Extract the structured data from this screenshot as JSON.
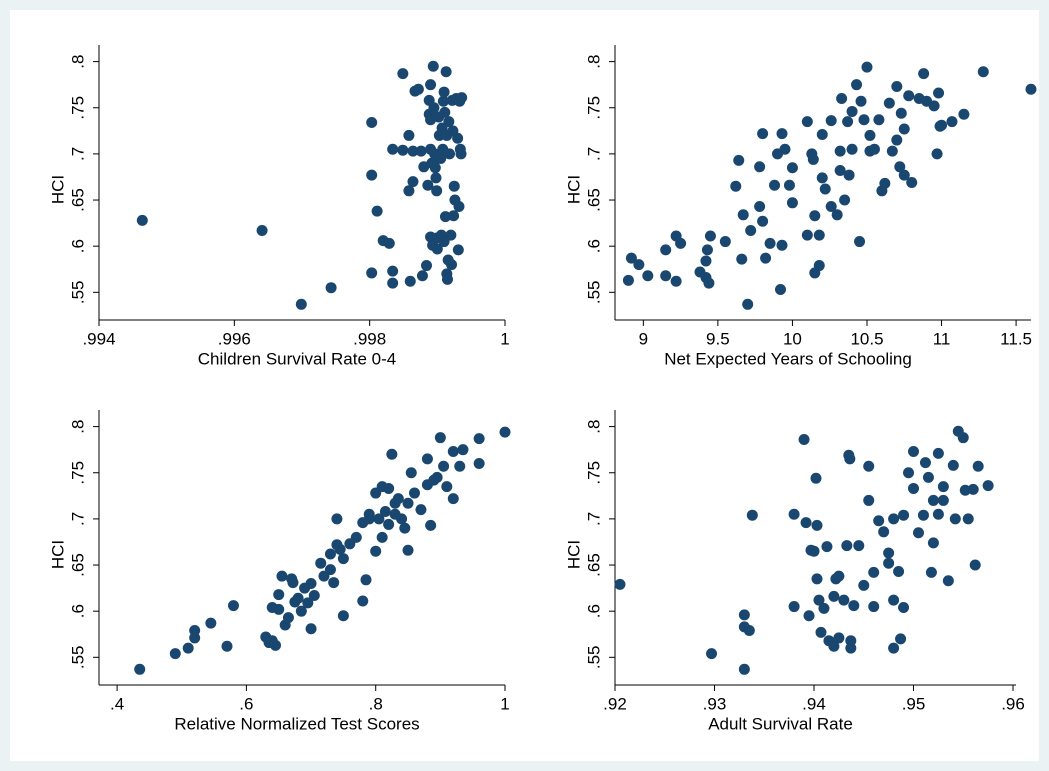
{
  "chart_data": [
    {
      "type": "scatter",
      "x_label": "Children Survival Rate 0-4",
      "y_label": "HCI",
      "color": "#1a476f",
      "xlim": [
        0.994,
        1.0
      ],
      "ylim": [
        0.52,
        0.818
      ],
      "xticks": [
        {
          "value": 0.994,
          "label": ".994"
        },
        {
          "value": 0.996,
          "label": ".996"
        },
        {
          "value": 0.998,
          "label": ".998"
        },
        1
      ],
      "yticks": [
        {
          "value": 0.55,
          "label": ".55"
        },
        {
          "value": 0.6,
          "label": ".6"
        },
        {
          "value": 0.65,
          "label": ".65"
        },
        {
          "value": 0.7,
          "label": ".7"
        },
        {
          "value": 0.75,
          "label": ".75"
        },
        {
          "value": 0.8,
          "label": ".8"
        }
      ],
      "x": [
        0.99464,
        0.99641,
        0.99699,
        0.99743,
        0.99803,
        0.99803,
        0.99803,
        0.99811,
        0.9982,
        0.99829,
        0.99834,
        0.99834,
        0.99834,
        0.99849,
        0.99849,
        0.99858,
        0.99858,
        0.99864,
        0.99864,
        0.9986,
        0.99867,
        0.99872,
        0.99876,
        0.9988,
        0.99878,
        0.99884,
        0.99886,
        0.99888,
        0.99888,
        0.9989,
        0.9989,
        0.9989,
        0.9989,
        0.99892,
        0.99893,
        0.99894,
        0.99895,
        0.99896,
        0.99897,
        0.99898,
        0.99899,
        0.999,
        0.999,
        0.99902,
        0.99903,
        0.99905,
        0.99906,
        0.99907,
        0.99908,
        0.99909,
        0.9991,
        0.9991,
        0.99911,
        0.99912,
        0.99913,
        0.99914,
        0.99914,
        0.99915,
        0.99916,
        0.99917,
        0.99918,
        0.9992,
        0.99921,
        0.99922,
        0.99923,
        0.99924,
        0.99925,
        0.99926,
        0.99928,
        0.9993,
        0.99931,
        0.99932,
        0.99933,
        0.99934,
        0.99935,
        0.99936
      ],
      "y": [
        0.628,
        0.617,
        0.537,
        0.555,
        0.734,
        0.677,
        0.571,
        0.638,
        0.606,
        0.603,
        0.705,
        0.573,
        0.56,
        0.787,
        0.704,
        0.72,
        0.66,
        0.703,
        0.67,
        0.562,
        0.768,
        0.77,
        0.703,
        0.686,
        0.568,
        0.579,
        0.666,
        0.758,
        0.743,
        0.775,
        0.737,
        0.705,
        0.61,
        0.69,
        0.601,
        0.795,
        0.75,
        0.7,
        0.685,
        0.674,
        0.66,
        0.609,
        0.597,
        0.74,
        0.72,
        0.695,
        0.612,
        0.728,
        0.705,
        0.757,
        0.767,
        0.605,
        0.745,
        0.632,
        0.789,
        0.72,
        0.57,
        0.564,
        0.585,
        0.735,
        0.7,
        0.612,
        0.58,
        0.758,
        0.725,
        0.633,
        0.665,
        0.65,
        0.76,
        0.717,
        0.596,
        0.643,
        0.757,
        0.705,
        0.7,
        0.761
      ]
    },
    {
      "type": "scatter",
      "x_label": "Net Expected Years of Schooling",
      "y_label": "HCI",
      "color": "#1a476f",
      "xlim": [
        8.81,
        11.6
      ],
      "ylim": [
        0.52,
        0.818
      ],
      "xticks": [
        9,
        9.5,
        10,
        10.5,
        11,
        11.5
      ],
      "yticks": [
        {
          "value": 0.55,
          "label": ".55"
        },
        {
          "value": 0.6,
          "label": ".6"
        },
        {
          "value": 0.65,
          "label": ".65"
        },
        {
          "value": 0.7,
          "label": ".7"
        },
        {
          "value": 0.75,
          "label": ".75"
        },
        {
          "value": 0.8,
          "label": ".8"
        }
      ],
      "x": [
        8.9,
        8.92,
        8.97,
        9.03,
        9.15,
        9.15,
        9.22,
        9.22,
        9.25,
        9.38,
        9.42,
        9.43,
        9.42,
        9.44,
        9.45,
        9.55,
        9.62,
        9.64,
        9.66,
        9.67,
        9.7,
        9.72,
        9.78,
        9.78,
        9.8,
        9.8,
        9.82,
        9.85,
        9.88,
        9.9,
        9.92,
        9.93,
        9.93,
        9.95,
        9.98,
        10.0,
        10.0,
        10.1,
        10.1,
        10.13,
        10.14,
        10.15,
        10.15,
        10.18,
        10.18,
        10.2,
        10.2,
        10.22,
        10.26,
        10.26,
        10.3,
        10.32,
        10.32,
        10.33,
        10.35,
        10.37,
        10.38,
        10.4,
        10.4,
        10.43,
        10.45,
        10.46,
        10.48,
        10.5,
        10.52,
        10.52,
        10.55,
        10.58,
        10.6,
        10.62,
        10.65,
        10.67,
        10.7,
        10.7,
        10.72,
        10.73,
        10.75,
        10.75,
        10.78,
        10.8,
        10.85,
        10.88,
        10.9,
        10.95,
        10.97,
        10.98,
        10.99,
        11.0,
        11.07,
        11.15,
        11.28,
        11.6
      ],
      "y": [
        0.563,
        0.587,
        0.58,
        0.568,
        0.596,
        0.568,
        0.562,
        0.611,
        0.603,
        0.572,
        0.584,
        0.596,
        0.566,
        0.56,
        0.611,
        0.605,
        0.665,
        0.693,
        0.586,
        0.634,
        0.537,
        0.617,
        0.686,
        0.643,
        0.722,
        0.627,
        0.587,
        0.603,
        0.666,
        0.7,
        0.553,
        0.722,
        0.601,
        0.705,
        0.666,
        0.647,
        0.685,
        0.735,
        0.612,
        0.7,
        0.694,
        0.633,
        0.571,
        0.579,
        0.612,
        0.674,
        0.721,
        0.662,
        0.643,
        0.736,
        0.634,
        0.682,
        0.703,
        0.76,
        0.65,
        0.735,
        0.677,
        0.705,
        0.746,
        0.775,
        0.605,
        0.757,
        0.737,
        0.794,
        0.72,
        0.703,
        0.705,
        0.737,
        0.66,
        0.668,
        0.755,
        0.703,
        0.773,
        0.715,
        0.686,
        0.744,
        0.727,
        0.677,
        0.763,
        0.669,
        0.76,
        0.787,
        0.757,
        0.752,
        0.7,
        0.766,
        0.73,
        0.731,
        0.735,
        0.743,
        0.789,
        0.77
      ]
    },
    {
      "type": "scatter",
      "x_label": "Relative Normalized Test Scores",
      "y_label": "HCI",
      "color": "#1a476f",
      "xlim": [
        0.372,
        1.0
      ],
      "ylim": [
        0.52,
        0.818
      ],
      "xticks": [
        {
          "value": 0.4,
          "label": ".4"
        },
        {
          "value": 0.6,
          "label": ".6"
        },
        {
          "value": 0.8,
          "label": ".8"
        },
        1
      ],
      "yticks": [
        {
          "value": 0.55,
          "label": ".55"
        },
        {
          "value": 0.6,
          "label": ".6"
        },
        {
          "value": 0.65,
          "label": ".65"
        },
        {
          "value": 0.7,
          "label": ".7"
        },
        {
          "value": 0.75,
          "label": ".75"
        },
        {
          "value": 0.8,
          "label": ".8"
        }
      ],
      "x": [
        0.435,
        0.49,
        0.51,
        0.52,
        0.52,
        0.545,
        0.57,
        0.58,
        0.63,
        0.635,
        0.64,
        0.64,
        0.645,
        0.65,
        0.65,
        0.655,
        0.66,
        0.665,
        0.67,
        0.672,
        0.675,
        0.68,
        0.685,
        0.69,
        0.695,
        0.7,
        0.7,
        0.705,
        0.715,
        0.72,
        0.73,
        0.73,
        0.735,
        0.74,
        0.74,
        0.745,
        0.75,
        0.75,
        0.76,
        0.77,
        0.78,
        0.78,
        0.785,
        0.79,
        0.79,
        0.8,
        0.8,
        0.805,
        0.81,
        0.81,
        0.815,
        0.82,
        0.82,
        0.825,
        0.83,
        0.83,
        0.835,
        0.84,
        0.845,
        0.85,
        0.85,
        0.855,
        0.86,
        0.87,
        0.88,
        0.88,
        0.885,
        0.89,
        0.895,
        0.9,
        0.905,
        0.91,
        0.92,
        0.92,
        0.93,
        0.935,
        0.96,
        0.96,
        1.0
      ],
      "y": [
        0.537,
        0.554,
        0.56,
        0.579,
        0.571,
        0.587,
        0.562,
        0.606,
        0.572,
        0.566,
        0.568,
        0.604,
        0.563,
        0.602,
        0.618,
        0.638,
        0.585,
        0.593,
        0.635,
        0.631,
        0.61,
        0.614,
        0.6,
        0.625,
        0.609,
        0.581,
        0.63,
        0.617,
        0.652,
        0.638,
        0.662,
        0.645,
        0.631,
        0.7,
        0.672,
        0.667,
        0.595,
        0.657,
        0.673,
        0.68,
        0.696,
        0.611,
        0.634,
        0.7,
        0.705,
        0.665,
        0.728,
        0.7,
        0.735,
        0.68,
        0.708,
        0.733,
        0.694,
        0.77,
        0.705,
        0.717,
        0.722,
        0.7,
        0.69,
        0.717,
        0.666,
        0.75,
        0.728,
        0.71,
        0.765,
        0.737,
        0.693,
        0.742,
        0.745,
        0.788,
        0.757,
        0.735,
        0.773,
        0.722,
        0.757,
        0.775,
        0.787,
        0.76,
        0.794
      ]
    },
    {
      "type": "scatter",
      "x_label": "Adult Survival Rate",
      "y_label": "HCI",
      "color": "#1a476f",
      "xlim": [
        0.92,
        0.9603
      ],
      "ylim": [
        0.52,
        0.818
      ],
      "xticks": [
        {
          "value": 0.92,
          "label": ".92"
        },
        {
          "value": 0.93,
          "label": ".93"
        },
        {
          "value": 0.94,
          "label": ".94"
        },
        {
          "value": 0.95,
          "label": ".95"
        },
        {
          "value": 0.96,
          "label": ".96"
        }
      ],
      "yticks": [
        {
          "value": 0.55,
          "label": ".55"
        },
        {
          "value": 0.6,
          "label": ".6"
        },
        {
          "value": 0.65,
          "label": ".65"
        },
        {
          "value": 0.7,
          "label": ".7"
        },
        {
          "value": 0.75,
          "label": ".75"
        },
        {
          "value": 0.8,
          "label": ".8"
        }
      ],
      "x": [
        0.9205,
        0.9297,
        0.933,
        0.933,
        0.933,
        0.9335,
        0.9338,
        0.938,
        0.938,
        0.939,
        0.9392,
        0.9395,
        0.9397,
        0.94,
        0.9402,
        0.9403,
        0.9403,
        0.9405,
        0.9407,
        0.941,
        0.9413,
        0.9415,
        0.942,
        0.942,
        0.9422,
        0.9425,
        0.9425,
        0.943,
        0.9433,
        0.9435,
        0.9436,
        0.9437,
        0.9437,
        0.944,
        0.9445,
        0.945,
        0.9455,
        0.9455,
        0.946,
        0.946,
        0.9465,
        0.947,
        0.9475,
        0.9475,
        0.948,
        0.948,
        0.948,
        0.9485,
        0.9487,
        0.949,
        0.949,
        0.9495,
        0.95,
        0.95,
        0.9505,
        0.951,
        0.9512,
        0.9515,
        0.9518,
        0.952,
        0.952,
        0.9525,
        0.9525,
        0.953,
        0.953,
        0.9535,
        0.954,
        0.9542,
        0.9545,
        0.955,
        0.9552,
        0.9555,
        0.956,
        0.9562,
        0.9565,
        0.9575
      ],
      "y": [
        0.629,
        0.554,
        0.537,
        0.583,
        0.596,
        0.579,
        0.704,
        0.605,
        0.705,
        0.786,
        0.696,
        0.595,
        0.666,
        0.665,
        0.744,
        0.693,
        0.635,
        0.612,
        0.577,
        0.603,
        0.67,
        0.568,
        0.616,
        0.562,
        0.635,
        0.638,
        0.571,
        0.612,
        0.671,
        0.769,
        0.765,
        0.568,
        0.56,
        0.606,
        0.671,
        0.628,
        0.757,
        0.72,
        0.642,
        0.605,
        0.698,
        0.686,
        0.663,
        0.652,
        0.7,
        0.56,
        0.612,
        0.643,
        0.57,
        0.704,
        0.604,
        0.75,
        0.773,
        0.733,
        0.685,
        0.704,
        0.761,
        0.745,
        0.642,
        0.674,
        0.72,
        0.771,
        0.705,
        0.735,
        0.72,
        0.633,
        0.758,
        0.7,
        0.795,
        0.788,
        0.731,
        0.7,
        0.732,
        0.65,
        0.757,
        0.736
      ]
    }
  ]
}
